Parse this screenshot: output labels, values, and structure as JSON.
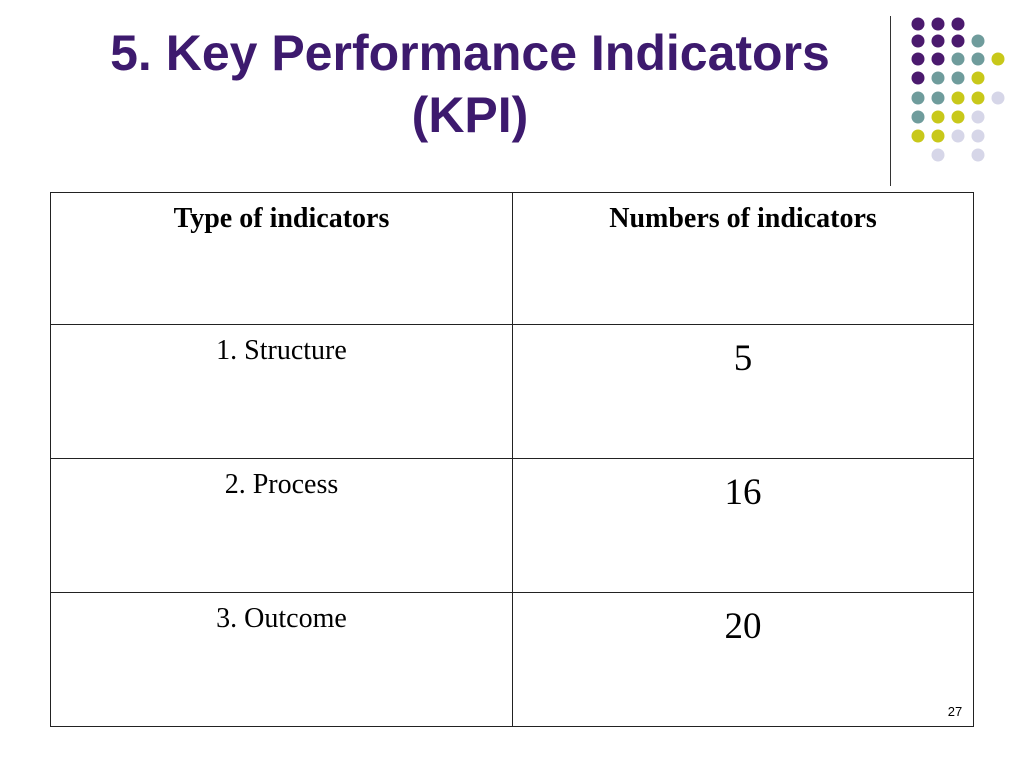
{
  "slide": {
    "title_line1": "5. Key Performance Indicators",
    "title_line2": "(KPI)",
    "page_number": "27"
  },
  "table": {
    "headers": [
      "Type of indicators",
      "Numbers of indicators"
    ],
    "rows": [
      {
        "type": "1. Structure",
        "count": "5"
      },
      {
        "type": "2. Process",
        "count": "16"
      },
      {
        "type": "3. Outcome",
        "count": "20"
      }
    ]
  },
  "colors": {
    "title": "#3d1a6e",
    "dot_purple": "#4b1a6e",
    "dot_teal": "#6f9c9c",
    "dot_yellow": "#c8c81a",
    "dot_lavender": "#d6d6e8"
  }
}
